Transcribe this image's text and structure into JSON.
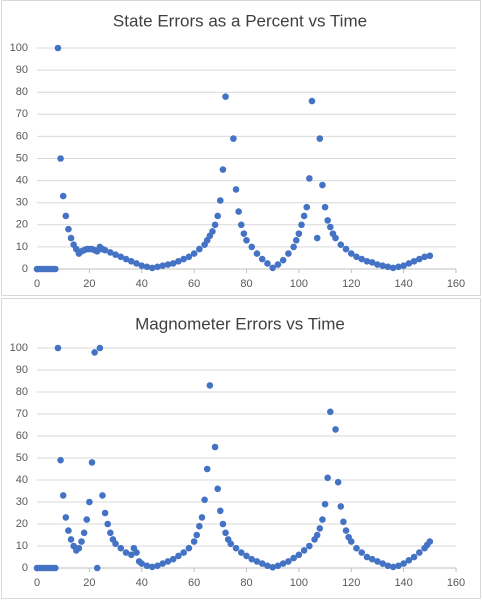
{
  "chart_data": [
    {
      "type": "scatter",
      "title": "State Errors as a Percent vs Time",
      "color": "#4472c4",
      "grid": true,
      "xlim": [
        0,
        160
      ],
      "xticks": [
        0,
        20,
        40,
        60,
        80,
        100,
        120,
        140,
        160
      ],
      "ylim": [
        0,
        100
      ],
      "yticks": [
        0,
        10,
        20,
        30,
        40,
        50,
        60,
        70,
        80,
        90,
        100
      ],
      "x": [
        0,
        1,
        2,
        3,
        4,
        5,
        6,
        7,
        8,
        9,
        10,
        11,
        12,
        13,
        14,
        15,
        16,
        17,
        18,
        19,
        20,
        21,
        22,
        23,
        24,
        25,
        26,
        28,
        30,
        32,
        34,
        36,
        38,
        40,
        42,
        44,
        46,
        48,
        50,
        52,
        54,
        56,
        58,
        60,
        62,
        64,
        65,
        66,
        67,
        68,
        69,
        70,
        71,
        72,
        75,
        76,
        77,
        78,
        79,
        80,
        82,
        84,
        86,
        88,
        90,
        92,
        94,
        96,
        98,
        99,
        100,
        101,
        102,
        103,
        104,
        105,
        107,
        108,
        109,
        110,
        111,
        112,
        113,
        114,
        116,
        118,
        120,
        122,
        124,
        126,
        128,
        130,
        132,
        134,
        136,
        138,
        140,
        142,
        144,
        146,
        148,
        150
      ],
      "values": [
        0,
        0,
        0,
        0,
        0,
        0,
        0,
        0,
        100,
        50,
        33,
        24,
        18,
        14,
        11,
        9,
        7,
        8,
        8.5,
        9,
        9,
        9,
        8.5,
        8,
        10,
        9,
        8.5,
        7.5,
        6.5,
        5.5,
        4.5,
        3.5,
        2.5,
        1.5,
        1,
        0.5,
        1,
        1.5,
        2,
        2.5,
        3.5,
        4.5,
        5.5,
        7,
        9,
        11,
        13,
        15,
        17,
        20,
        24,
        31,
        45,
        78,
        59,
        36,
        26,
        20,
        16,
        13,
        10,
        7,
        4.5,
        2.5,
        0.5,
        2,
        4,
        7,
        10,
        13,
        16,
        20,
        24,
        28,
        41,
        76,
        14,
        59,
        38,
        28,
        22,
        19,
        16,
        14,
        11,
        9,
        7,
        5.5,
        4.5,
        3.5,
        3,
        2,
        1.5,
        1,
        0.5,
        1,
        1.5,
        2.5,
        3.5,
        4.5,
        5.5,
        6
      ]
    },
    {
      "type": "scatter",
      "title": "Magnometer Errors vs Time",
      "color": "#4472c4",
      "grid": true,
      "xlim": [
        0,
        160
      ],
      "xticks": [
        0,
        20,
        40,
        60,
        80,
        100,
        120,
        140,
        160
      ],
      "ylim": [
        0,
        100
      ],
      "yticks": [
        0,
        10,
        20,
        30,
        40,
        50,
        60,
        70,
        80,
        90,
        100
      ],
      "x": [
        0,
        1,
        2,
        3,
        4,
        5,
        6,
        7,
        8,
        9,
        10,
        11,
        12,
        13,
        14,
        15,
        16,
        17,
        18,
        19,
        20,
        21,
        22,
        23,
        24,
        25,
        26,
        27,
        28,
        29,
        30,
        32,
        34,
        36,
        37,
        38,
        39,
        40,
        42,
        44,
        46,
        48,
        50,
        52,
        54,
        56,
        58,
        60,
        61,
        62,
        63,
        64,
        65,
        66,
        68,
        69,
        70,
        71,
        72,
        73,
        74,
        76,
        78,
        80,
        82,
        84,
        86,
        88,
        90,
        92,
        94,
        96,
        98,
        100,
        102,
        104,
        106,
        107,
        108,
        109,
        110,
        111,
        112,
        114,
        115,
        116,
        117,
        118,
        119,
        120,
        122,
        124,
        126,
        128,
        130,
        132,
        134,
        136,
        138,
        140,
        142,
        144,
        146,
        148,
        149,
        150
      ],
      "values": [
        0,
        0,
        0,
        0,
        0,
        0,
        0,
        0,
        100,
        49,
        33,
        23,
        17,
        13,
        10,
        8,
        9,
        12,
        16,
        22,
        30,
        48,
        98,
        0,
        100,
        33,
        25,
        20,
        16,
        13,
        11,
        9,
        7,
        6,
        9,
        7,
        3,
        2,
        1,
        0.5,
        1,
        2,
        3,
        4,
        5.5,
        7,
        9,
        12,
        15,
        19,
        23,
        31,
        45,
        83,
        55,
        36,
        26,
        20,
        16,
        13,
        11,
        9,
        7,
        5.5,
        4,
        3,
        2,
        1,
        0.3,
        1,
        2,
        3,
        4.5,
        6,
        8,
        10,
        13,
        15,
        18,
        22,
        29,
        41,
        71,
        63,
        39,
        28,
        21,
        17,
        14,
        12,
        9,
        7,
        5,
        4,
        3,
        2,
        1,
        0.5,
        1,
        2,
        3.5,
        5,
        7,
        9,
        10.5,
        12
      ]
    }
  ]
}
